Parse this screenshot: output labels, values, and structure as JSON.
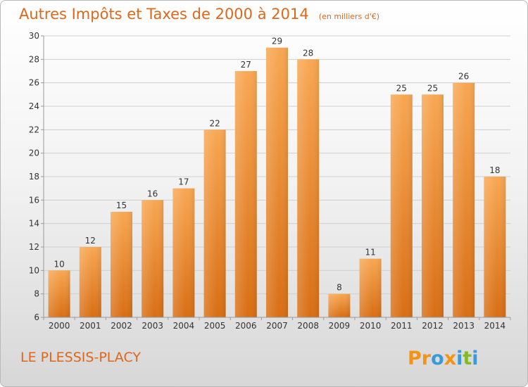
{
  "chart_data": {
    "type": "bar",
    "title": "Autres Impôts et Taxes de 2000 à 2014",
    "subtitle": "(en milliers d'€)",
    "categories": [
      "2000",
      "2001",
      "2002",
      "2003",
      "2004",
      "2005",
      "2006",
      "2007",
      "2008",
      "2009",
      "2010",
      "2011",
      "2012",
      "2013",
      "2014"
    ],
    "values": [
      10,
      12,
      15,
      16,
      17,
      22,
      27,
      29,
      28,
      8,
      11,
      25,
      25,
      26,
      18
    ],
    "data_labels": [
      "10",
      "12",
      "15",
      "16",
      "17",
      "22",
      "27",
      "29",
      "28",
      "8",
      "11",
      "25",
      "25",
      "26",
      "18"
    ],
    "ylim": [
      6,
      30
    ],
    "yticks": [
      "6",
      "8",
      "10",
      "12",
      "14",
      "16",
      "18",
      "20",
      "22",
      "24",
      "26",
      "28",
      "30"
    ],
    "grid": true,
    "colors": {
      "bar_light": "#f8a752",
      "bar_dark": "#d86e14",
      "grid": "#cfcfcf"
    }
  },
  "footer": {
    "commune": "LE PLESSIS-PLACY",
    "logo_letters": [
      "P",
      "r",
      "o",
      "x",
      "i",
      "t",
      "i"
    ],
    "logo_colors": [
      "#f29418",
      "#f29418",
      "#3c98d6",
      "#f29418",
      "#3c98d6",
      "#84b928",
      "#3c98d6"
    ]
  }
}
